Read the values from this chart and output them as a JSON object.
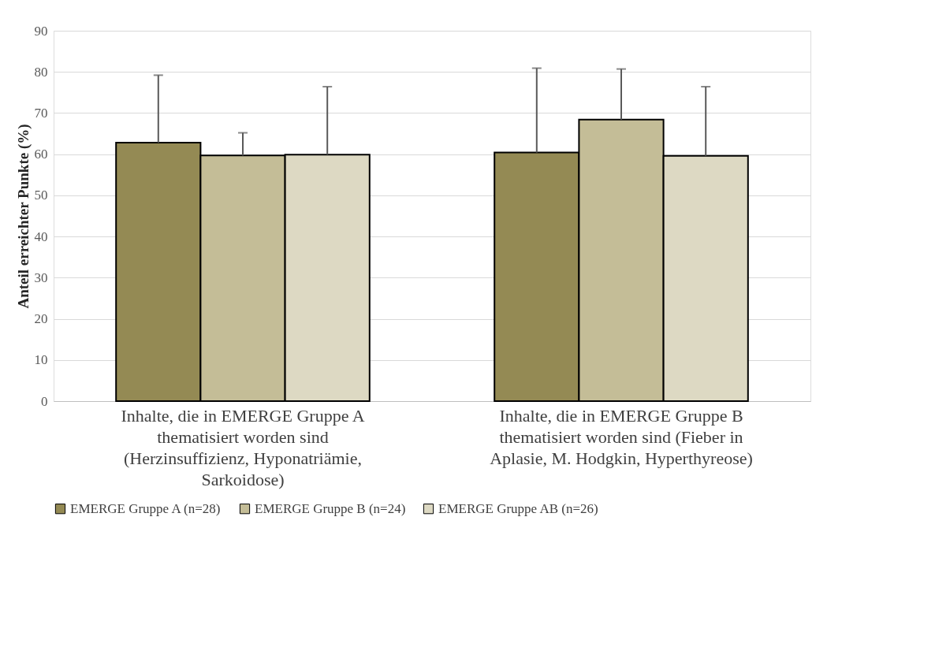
{
  "chart_data": {
    "type": "bar",
    "categories": [
      "Inhalte, die in EMERGE Gruppe A thematisiert worden sind (Herzinsuffizienz, Hyponatriämie, Sarkoidose)",
      "Inhalte, die in EMERGE Gruppe B thematisiert worden sind (Fieber in Aplasie, M. Hodgkin, Hyperthyreose)"
    ],
    "series": [
      {
        "name": "EMERGE Gruppe A (n=28)",
        "color": "#948a54",
        "values": [
          62.8,
          60.4
        ],
        "errors": [
          [
            62.8,
            79.2
          ],
          [
            60.4,
            80.9
          ]
        ]
      },
      {
        "name": "EMERGE Gruppe B (n=24)",
        "color": "#c4bd97",
        "values": [
          59.7,
          68.4
        ],
        "errors": [
          [
            59.7,
            65.2
          ],
          [
            68.4,
            80.7
          ]
        ]
      },
      {
        "name": "EMERGE Gruppe AB (n=26)",
        "color": "#ddd9c3",
        "values": [
          59.9,
          59.6
        ],
        "errors": [
          [
            59.9,
            76.4
          ],
          [
            59.6,
            76.4
          ]
        ]
      }
    ],
    "ylabel": "Anteil erreichter Punkte (%)",
    "ylim": [
      0,
      90
    ],
    "yticks": [
      0,
      10,
      20,
      30,
      40,
      50,
      60,
      70,
      80,
      90
    ],
    "grid": "y",
    "legend": "bottom"
  }
}
